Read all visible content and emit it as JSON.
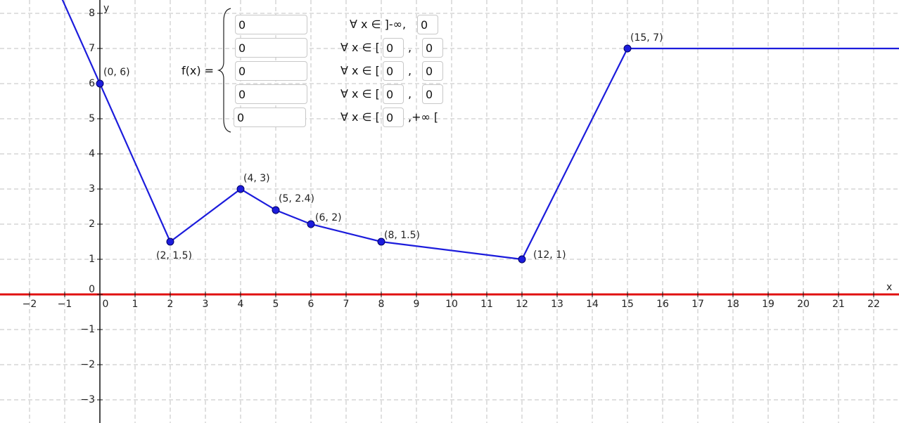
{
  "chart_data": {
    "type": "line",
    "xlim": [
      -2.84,
      22.72
    ],
    "ylim": [
      -3.66,
      8.38
    ],
    "xlabel": "x",
    "ylabel": "y",
    "grid": true,
    "xticks": [
      {
        "value": -2,
        "label": "−2"
      },
      {
        "value": -1,
        "label": "−1"
      },
      0,
      1,
      2,
      3,
      4,
      5,
      6,
      7,
      8,
      9,
      10,
      11,
      12,
      13,
      14,
      15,
      16,
      17,
      18,
      19,
      20,
      21,
      22
    ],
    "yticks": [
      {
        "value": -3,
        "label": "−3"
      },
      {
        "value": -2,
        "label": "−2"
      },
      {
        "value": -1,
        "label": "−1"
      },
      0,
      1,
      2,
      3,
      4,
      5,
      6,
      7,
      8
    ],
    "series": [
      {
        "color": "#1c1cdc",
        "x": [
          -1.07,
          0,
          2,
          4,
          5,
          6,
          8,
          12,
          15,
          22.72
        ],
        "values": [
          8.4,
          6,
          1.5,
          3,
          2.4,
          2,
          1.5,
          1,
          7,
          7
        ]
      }
    ],
    "points": {
      "color": "#1c1cdc",
      "x": [
        0,
        2,
        4,
        5,
        6,
        8,
        12,
        15
      ],
      "values": [
        6,
        1.5,
        3,
        2.4,
        2,
        1.5,
        1,
        7
      ],
      "value_labels": [
        "(0, 6)",
        "(2, 1.5)",
        "(4, 3)",
        "(5, 2.4)",
        "(6, 2)",
        "(8, 1.5)",
        "(12, 1)",
        "(15, 7)"
      ]
    }
  },
  "formula": {
    "label": "f(x) =",
    "rows": [
      {
        "expr": "0",
        "cond": "∀ x ∈ ]-∞,",
        "upper": "0"
      },
      {
        "expr": "0",
        "cond": "∀ x ∈ [",
        "lower": "0",
        "sep": ",",
        "upper": "0"
      },
      {
        "expr": "0",
        "cond": "∀ x ∈ [",
        "lower": "0",
        "sep": ",",
        "upper": "0"
      },
      {
        "expr": "0",
        "cond": "∀ x ∈ [",
        "lower": "0",
        "sep": ",",
        "upper": "0"
      },
      {
        "expr": "0",
        "cond": "∀ x ∈ [",
        "lower": "0",
        "sep": ",+∞ ["
      }
    ]
  }
}
